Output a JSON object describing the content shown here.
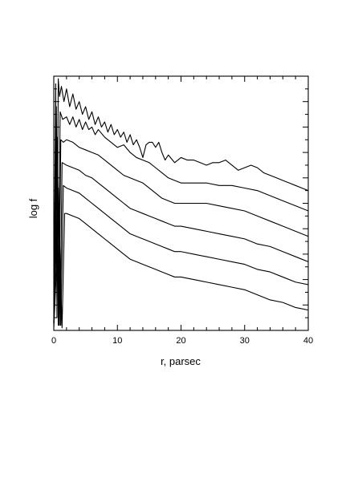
{
  "chart_data": {
    "type": "line",
    "title": "",
    "xlabel": "r, parsec",
    "ylabel": "log f",
    "xlim": [
      0,
      40
    ],
    "ylim": [
      0,
      1
    ],
    "x_ticks": [
      0,
      10,
      20,
      30,
      40
    ],
    "x_tick_labels": [
      "0",
      "10",
      "20",
      "30",
      "40"
    ],
    "y_tick_labels_shown": false,
    "grid": false,
    "legend": "none",
    "series": [
      {
        "x": [
          0,
          0.3,
          0.5,
          0.7,
          0.9,
          1.2,
          1.6,
          2,
          2.5,
          3,
          3.5,
          4,
          4.5,
          5,
          5.5,
          6,
          6.5,
          7,
          7.5,
          8,
          8.5,
          9,
          9.5,
          10,
          10.5,
          11,
          11.5,
          12,
          12.5,
          13,
          13.5,
          14,
          14.5,
          15,
          15.5,
          16,
          16.5,
          17,
          17.5,
          18,
          19,
          20,
          21,
          22,
          23,
          24,
          25,
          26,
          27,
          28,
          29,
          30,
          31,
          32,
          33,
          34,
          35,
          36,
          37,
          38,
          39,
          40
        ],
        "values": [
          0.03,
          0.97,
          0.05,
          0.99,
          0.92,
          0.96,
          0.9,
          0.95,
          0.88,
          0.93,
          0.87,
          0.9,
          0.85,
          0.88,
          0.83,
          0.86,
          0.81,
          0.84,
          0.8,
          0.82,
          0.78,
          0.81,
          0.77,
          0.79,
          0.76,
          0.78,
          0.74,
          0.77,
          0.73,
          0.75,
          0.72,
          0.68,
          0.73,
          0.74,
          0.74,
          0.72,
          0.74,
          0.7,
          0.67,
          0.69,
          0.66,
          0.68,
          0.67,
          0.67,
          0.66,
          0.65,
          0.66,
          0.66,
          0.67,
          0.65,
          0.63,
          0.64,
          0.65,
          0.64,
          0.62,
          0.61,
          0.6,
          0.59,
          0.58,
          0.57,
          0.56,
          0.55
        ]
      },
      {
        "x": [
          0,
          0.4,
          0.7,
          1,
          1.4,
          2,
          2.5,
          3,
          3.5,
          4,
          4.5,
          5,
          5.5,
          6,
          6.5,
          7,
          8,
          9,
          10,
          11,
          12,
          13,
          14,
          15,
          16,
          17,
          18,
          19,
          20,
          22,
          24,
          26,
          28,
          30,
          32,
          34,
          36,
          38,
          40
        ],
        "values": [
          0.03,
          0.88,
          0.02,
          0.86,
          0.83,
          0.84,
          0.81,
          0.84,
          0.8,
          0.83,
          0.79,
          0.82,
          0.79,
          0.8,
          0.77,
          0.79,
          0.76,
          0.74,
          0.72,
          0.73,
          0.7,
          0.68,
          0.67,
          0.66,
          0.64,
          0.62,
          0.6,
          0.59,
          0.58,
          0.58,
          0.58,
          0.57,
          0.57,
          0.56,
          0.55,
          0.53,
          0.51,
          0.49,
          0.47
        ]
      },
      {
        "x": [
          0,
          0.5,
          0.8,
          1.1,
          1.5,
          2,
          3,
          4,
          5,
          6,
          7,
          8,
          9,
          10,
          11,
          12,
          13,
          14,
          15,
          16,
          17,
          18,
          19,
          20,
          22,
          24,
          26,
          28,
          30,
          32,
          34,
          36,
          38,
          40
        ],
        "values": [
          0.03,
          0.76,
          0.02,
          0.75,
          0.74,
          0.75,
          0.74,
          0.72,
          0.71,
          0.7,
          0.69,
          0.67,
          0.65,
          0.63,
          0.61,
          0.6,
          0.59,
          0.58,
          0.56,
          0.54,
          0.52,
          0.51,
          0.5,
          0.5,
          0.5,
          0.5,
          0.49,
          0.48,
          0.47,
          0.45,
          0.43,
          0.41,
          0.39,
          0.37
        ]
      },
      {
        "x": [
          0,
          0.6,
          1,
          1.3,
          2,
          3,
          4,
          5,
          6,
          7,
          8,
          9,
          10,
          11,
          12,
          13,
          14,
          15,
          16,
          17,
          18,
          19,
          20,
          22,
          24,
          26,
          28,
          30,
          32,
          34,
          36,
          38,
          40
        ],
        "values": [
          0.03,
          0.65,
          0.02,
          0.66,
          0.65,
          0.64,
          0.63,
          0.61,
          0.6,
          0.58,
          0.56,
          0.54,
          0.52,
          0.5,
          0.48,
          0.47,
          0.46,
          0.45,
          0.44,
          0.43,
          0.42,
          0.41,
          0.41,
          0.4,
          0.39,
          0.38,
          0.37,
          0.36,
          0.34,
          0.33,
          0.31,
          0.29,
          0.27
        ]
      },
      {
        "x": [
          0,
          0.7,
          1.1,
          1.5,
          2,
          3,
          4,
          5,
          6,
          7,
          8,
          9,
          10,
          11,
          12,
          13,
          14,
          15,
          16,
          17,
          18,
          19,
          20,
          22,
          24,
          26,
          28,
          30,
          32,
          34,
          36,
          38,
          40
        ],
        "values": [
          0.03,
          0.56,
          0.02,
          0.57,
          0.56,
          0.55,
          0.54,
          0.52,
          0.5,
          0.48,
          0.46,
          0.44,
          0.42,
          0.4,
          0.38,
          0.37,
          0.36,
          0.35,
          0.34,
          0.33,
          0.32,
          0.31,
          0.31,
          0.3,
          0.29,
          0.28,
          0.27,
          0.26,
          0.24,
          0.23,
          0.21,
          0.19,
          0.18
        ]
      },
      {
        "x": [
          0,
          0.8,
          1.3,
          1.7,
          2,
          3,
          4,
          5,
          6,
          7,
          8,
          9,
          10,
          11,
          12,
          13,
          14,
          15,
          16,
          17,
          18,
          19,
          20,
          22,
          24,
          26,
          28,
          30,
          32,
          34,
          36,
          38,
          40
        ],
        "values": [
          0.01,
          0.45,
          0.01,
          0.46,
          0.46,
          0.45,
          0.44,
          0.42,
          0.4,
          0.38,
          0.36,
          0.34,
          0.32,
          0.3,
          0.28,
          0.27,
          0.26,
          0.25,
          0.24,
          0.23,
          0.22,
          0.21,
          0.21,
          0.2,
          0.19,
          0.18,
          0.17,
          0.16,
          0.14,
          0.12,
          0.11,
          0.09,
          0.08
        ]
      }
    ]
  }
}
